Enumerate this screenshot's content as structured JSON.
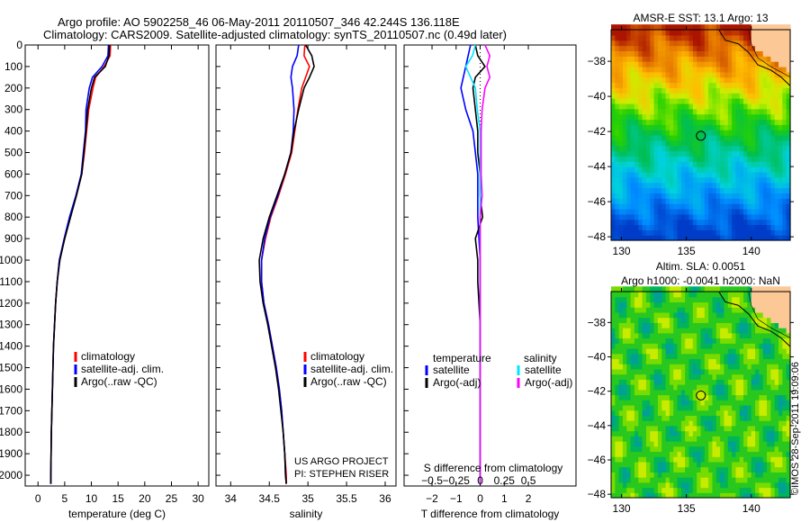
{
  "title": {
    "line1": "Argo profile: AO 5902258_46 06-May-2011 20110507_346 42.244S 136.118E",
    "line2": "Climatology: CARS2009. Satellite-adjusted climatology: synTS_20110507.nc (0.49d later)"
  },
  "credit": "©IMOS 28-Sep-2011 19:09:06",
  "project": {
    "line1": "US ARGO PROJECT",
    "line2": "PI: STEPHEN RISER"
  },
  "colors": {
    "climatology": "#ff0000",
    "satellite": "#0000ff",
    "argo": "#000000",
    "s_satellite": "#00e5ff",
    "s_argo": "#ff00ff"
  },
  "chart_data": [
    {
      "type": "line",
      "xlabel": "temperature (deg C)",
      "ylabel": "",
      "xlim": [
        -2.4,
        32
      ],
      "ylim": [
        2050,
        0
      ],
      "xticks": [
        0,
        5,
        10,
        15,
        20,
        25,
        30
      ],
      "yticks": [
        0,
        100,
        200,
        300,
        400,
        500,
        600,
        700,
        800,
        900,
        1000,
        1100,
        1200,
        1300,
        1400,
        1500,
        1600,
        1700,
        1800,
        1900,
        2000
      ],
      "depth": [
        0,
        50,
        100,
        150,
        200,
        300,
        400,
        500,
        600,
        700,
        800,
        900,
        1000,
        1100,
        1200,
        1300,
        1400,
        1500,
        1600,
        1700,
        1800,
        1900,
        2000,
        2040
      ],
      "legend": [
        "climatology",
        "satellite-adj. clim.",
        "Argo(..raw -QC)"
      ],
      "series": [
        {
          "name": "climatology",
          "values": [
            13.6,
            13.5,
            12.4,
            10.8,
            10.3,
            9.5,
            9.1,
            8.7,
            8.2,
            7.2,
            6.0,
            5.0,
            4.0,
            3.6,
            3.3,
            3.1,
            2.9,
            2.8,
            2.7,
            2.6,
            2.5,
            2.45,
            2.4,
            2.4
          ]
        },
        {
          "name": "satellite-adj. clim.",
          "values": [
            13.2,
            13.1,
            12.0,
            10.2,
            9.6,
            9.0,
            8.9,
            8.5,
            8.1,
            7.1,
            5.9,
            4.9,
            4.0,
            3.6,
            3.3,
            3.1,
            2.9,
            2.8,
            2.7,
            2.6,
            2.5,
            2.45,
            2.4,
            2.4
          ]
        },
        {
          "name": "Argo(..raw -QC)",
          "values": [
            13.4,
            13.3,
            12.6,
            10.6,
            10.0,
            9.3,
            9.0,
            8.6,
            8.2,
            7.2,
            6.1,
            5.0,
            4.1,
            3.6,
            3.3,
            3.1,
            2.9,
            2.8,
            2.7,
            2.6,
            2.5,
            2.45,
            2.4,
            2.4
          ]
        }
      ]
    },
    {
      "type": "line",
      "xlabel": "salinity",
      "ylabel": "",
      "xlim": [
        33.81,
        36.14
      ],
      "ylim": [
        2050,
        0
      ],
      "xticks": [
        34,
        34.5,
        35,
        35.5,
        36
      ],
      "depth": [
        0,
        50,
        100,
        150,
        200,
        300,
        400,
        500,
        600,
        700,
        800,
        900,
        1000,
        1100,
        1200,
        1300,
        1400,
        1500,
        1600,
        1700,
        1800,
        1900,
        2000,
        2040
      ],
      "legend": [
        "climatology",
        "satellite-adj. clim.",
        "Argo(..raw -QC)"
      ],
      "series": [
        {
          "name": "climatology",
          "values": [
            34.96,
            34.95,
            35.02,
            34.97,
            34.92,
            34.87,
            34.83,
            34.79,
            34.71,
            34.62,
            34.52,
            34.45,
            34.4,
            34.4,
            34.43,
            34.49,
            34.54,
            34.59,
            34.63,
            34.66,
            34.68,
            34.7,
            34.72,
            34.72
          ]
        },
        {
          "name": "satellite-adj. clim.",
          "values": [
            34.88,
            34.86,
            34.8,
            34.78,
            34.8,
            34.82,
            34.81,
            34.78,
            34.7,
            34.61,
            34.51,
            34.44,
            34.4,
            34.4,
            34.43,
            34.49,
            34.54,
            34.59,
            34.63,
            34.66,
            34.68,
            34.7,
            34.71,
            34.72
          ]
        },
        {
          "name": "Argo(..raw -QC)",
          "values": [
            34.97,
            35.05,
            35.08,
            35.02,
            34.95,
            34.88,
            34.82,
            34.78,
            34.7,
            34.6,
            34.5,
            34.42,
            34.37,
            34.38,
            34.42,
            34.48,
            34.53,
            34.58,
            34.62,
            34.65,
            34.68,
            34.7,
            34.71,
            34.72
          ]
        }
      ]
    },
    {
      "type": "line",
      "xlabel": "T difference from climatology",
      "x2label": "S difference from climatology",
      "xlim": [
        -3.16,
        3.98
      ],
      "x2lim": [
        -0.79,
        0.995
      ],
      "ylim": [
        2050,
        0
      ],
      "xticks": [
        -2,
        -1,
        0,
        1,
        2
      ],
      "x2ticks": [
        -0.5,
        -0.25,
        0,
        0.25,
        0.5
      ],
      "depth": [
        0,
        50,
        100,
        150,
        200,
        300,
        400,
        500,
        600,
        700,
        800,
        900,
        1000,
        1100,
        1200,
        1300,
        1400,
        1500,
        1600,
        1700,
        1800,
        1900,
        2000,
        2040
      ],
      "legend": {
        "temperature": "temperature",
        "salinity": "salinity",
        "t_sat": "satellite",
        "t_argo": "Argo(-adj)",
        "s_sat": "satellite",
        "s_argo": "Argo(-adj)"
      },
      "series": [
        {
          "name": "T satellite",
          "axis": "T",
          "values": [
            -0.4,
            -0.5,
            -0.6,
            -0.7,
            -0.8,
            -0.6,
            -0.3,
            -0.2,
            -0.1,
            -0.1,
            -0.1,
            -0.05,
            0,
            0,
            0,
            0,
            0,
            0,
            0,
            0,
            0,
            0,
            0,
            0
          ]
        },
        {
          "name": "T Argo(-adj)",
          "axis": "T",
          "values": [
            -0.2,
            -0.1,
            0.2,
            -0.2,
            -0.3,
            -0.2,
            -0.1,
            -0.1,
            0,
            0,
            0.1,
            -0.2,
            -0.1,
            -0.1,
            -0.05,
            0,
            0,
            0,
            0,
            0,
            0,
            0,
            0,
            0
          ]
        },
        {
          "name": "S satellite",
          "axis": "S",
          "values": [
            -0.05,
            -0.08,
            -0.15,
            -0.1,
            -0.05,
            -0.03,
            0,
            0,
            0,
            0,
            0,
            0,
            0,
            0,
            0,
            0,
            0,
            0,
            0,
            0,
            0,
            0,
            0,
            0
          ]
        },
        {
          "name": "S Argo(-adj)",
          "axis": "S",
          "values": [
            0.05,
            0.1,
            0.07,
            0.1,
            0.05,
            0.02,
            0.01,
            0.01,
            0.01,
            0.02,
            0,
            0,
            0,
            0,
            0,
            0,
            0,
            0,
            0,
            0,
            0,
            0,
            0,
            0
          ]
        }
      ]
    },
    {
      "type": "heatmap",
      "title": "AMSR-E SST: 13.1 Argo: 13",
      "xticks": [
        130,
        135,
        140
      ],
      "yticks": [
        -38,
        -40,
        -42,
        -44,
        -46,
        -48
      ],
      "xlim": [
        129.2,
        143
      ],
      "ylim": [
        -48.2,
        -36.2
      ],
      "marker": [
        136.118,
        -42.244
      ]
    },
    {
      "type": "heatmap",
      "title": "Altim. SLA: 0.0051",
      "subtitle": "Argo h1000: -0.0041 h2000: NaN",
      "xticks": [
        130,
        135,
        140
      ],
      "yticks": [
        -38,
        -40,
        -42,
        -44,
        -46,
        -48
      ],
      "xlim": [
        129.2,
        143
      ],
      "ylim": [
        -48.2,
        -36.2
      ],
      "marker": [
        136.118,
        -42.244
      ]
    }
  ]
}
